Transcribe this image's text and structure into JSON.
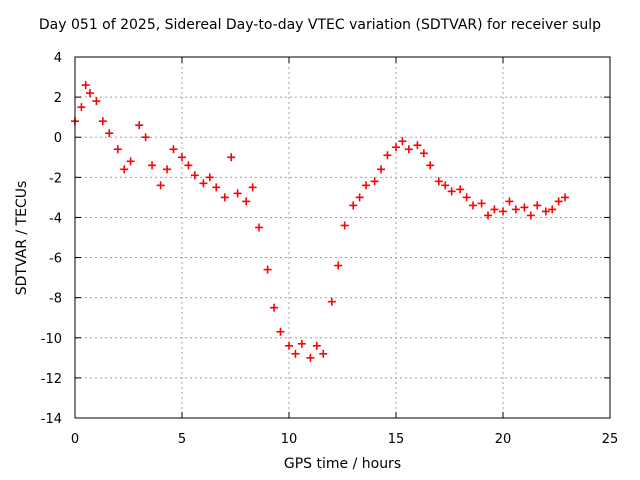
{
  "chart_data": {
    "type": "scatter",
    "title": "Day 051 of 2025, Sidereal Day-to-day VTEC variation (SDTVAR) for receiver sulp",
    "xlabel": "GPS time / hours",
    "ylabel": "SDTVAR / TECUs",
    "xlim": [
      0,
      25
    ],
    "ylim": [
      -14,
      4
    ],
    "x_ticks": [
      "0",
      "5",
      "10",
      "15",
      "20",
      "25"
    ],
    "y_ticks": [
      "4",
      "2",
      "0",
      "-2",
      "-4",
      "-6",
      "-8",
      "-10",
      "-12",
      "-14"
    ],
    "grid": true,
    "marker": "+",
    "series": [
      {
        "name": "SDTVAR",
        "color": "#ff0000",
        "x": [
          0.0,
          0.3,
          0.5,
          0.7,
          1.0,
          1.3,
          1.6,
          2.0,
          2.3,
          2.6,
          3.0,
          3.3,
          3.6,
          4.0,
          4.3,
          4.6,
          5.0,
          5.3,
          5.6,
          6.0,
          6.3,
          6.6,
          7.0,
          7.3,
          7.6,
          8.0,
          8.3,
          8.6,
          9.0,
          9.3,
          9.6,
          10.0,
          10.3,
          10.6,
          11.0,
          11.3,
          11.6,
          12.0,
          12.3,
          12.6,
          13.0,
          13.3,
          13.6,
          14.0,
          14.3,
          14.6,
          15.0,
          15.3,
          15.6,
          16.0,
          16.3,
          16.6,
          17.0,
          17.3,
          17.6,
          18.0,
          18.3,
          18.6,
          19.0,
          19.3,
          19.6,
          20.0,
          20.3,
          20.6,
          21.0,
          21.3,
          21.6,
          22.0,
          22.3,
          22.6,
          22.9
        ],
        "y": [
          0.8,
          1.5,
          2.6,
          2.2,
          1.8,
          0.8,
          0.2,
          -0.6,
          -1.6,
          -1.2,
          0.6,
          0.0,
          -1.4,
          -2.4,
          -1.6,
          -0.6,
          -1.0,
          -1.4,
          -1.9,
          -2.3,
          -2.0,
          -2.5,
          -3.0,
          -1.0,
          -2.8,
          -3.2,
          -2.5,
          -4.5,
          -6.6,
          -8.5,
          -9.7,
          -10.4,
          -10.8,
          -10.3,
          -11.0,
          -10.4,
          -10.8,
          -8.2,
          -6.4,
          -4.4,
          -3.4,
          -3.0,
          -2.4,
          -2.2,
          -1.6,
          -0.9,
          -0.5,
          -0.2,
          -0.6,
          -0.4,
          -0.8,
          -1.4,
          -2.2,
          -2.4,
          -2.7,
          -2.6,
          -3.0,
          -3.4,
          -3.3,
          -3.9,
          -3.6,
          -3.7,
          -3.2,
          -3.6,
          -3.5,
          -3.9,
          -3.4,
          -3.7,
          -3.6,
          -3.2,
          -3.0
        ]
      }
    ]
  }
}
